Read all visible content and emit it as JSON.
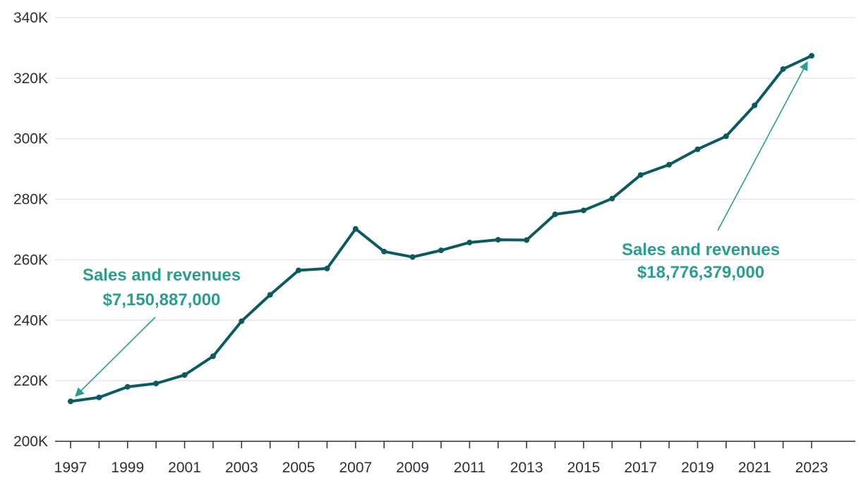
{
  "colors": {
    "line": "#0b5a5e",
    "annotation": "#2a9d8f",
    "grid": "#e3e3e3",
    "axis": "#2b2f36"
  },
  "chart_data": {
    "type": "line",
    "title": "",
    "xlabel": "",
    "ylabel": "",
    "grid": "horizontal",
    "ylim": [
      200000,
      340000
    ],
    "yticks": [
      "200K",
      "220K",
      "240K",
      "260K",
      "280K",
      "300K",
      "320K",
      "340K"
    ],
    "xlim": [
      1997,
      2023
    ],
    "xticks": [
      "1997",
      "1999",
      "2001",
      "2003",
      "2005",
      "2007",
      "2009",
      "2011",
      "2013",
      "2015",
      "2017",
      "2019",
      "2021",
      "2023"
    ],
    "x": [
      1997,
      1998,
      1999,
      2000,
      2001,
      2002,
      2003,
      2004,
      2005,
      2006,
      2007,
      2008,
      2009,
      2010,
      2011,
      2012,
      2013,
      2014,
      2015,
      2016,
      2017,
      2018,
      2019,
      2020,
      2021,
      2022,
      2023
    ],
    "series": [
      {
        "values": [
          213200,
          214500,
          218000,
          219100,
          221900,
          228100,
          239700,
          248400,
          256500,
          257100,
          270200,
          262700,
          260900,
          263100,
          265700,
          266600,
          266500,
          275000,
          276300,
          280200,
          288000,
          291400,
          296500,
          300800,
          311000,
          323000,
          327400
        ]
      }
    ],
    "annotations": [
      {
        "line1": "Sales and revenues",
        "line2": "$7,150,887,000",
        "x": 1997,
        "y": 213200
      },
      {
        "line1": "Sales and revenues",
        "line2": "$18,776,379,000",
        "x": 2023,
        "y": 327400
      }
    ]
  }
}
